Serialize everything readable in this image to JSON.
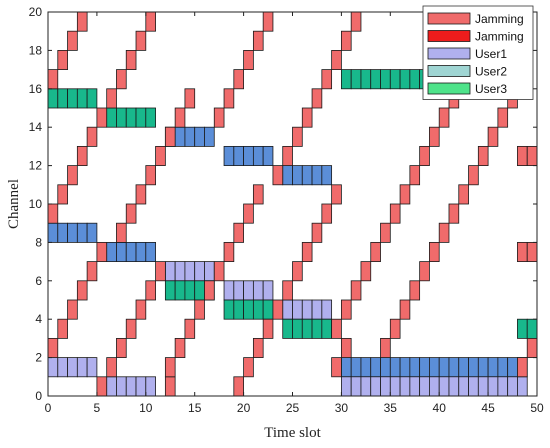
{
  "chart_data": {
    "type": "heatmap",
    "xlabel": "Time slot",
    "ylabel": "Channel",
    "xlim": [
      0,
      50
    ],
    "ylim": [
      0,
      20
    ],
    "xticks": [
      0,
      5,
      10,
      15,
      20,
      25,
      30,
      35,
      40,
      45,
      50
    ],
    "yticks": [
      0,
      2,
      4,
      6,
      8,
      10,
      12,
      14,
      16,
      18,
      20
    ],
    "grid": false,
    "legend_position": "top-right",
    "legend": [
      {
        "label": "Jamming",
        "color": "#f06b6b"
      },
      {
        "label": "Jamming",
        "color": "#ee1c1c"
      },
      {
        "label": "User1",
        "color": "#b0b0ee"
      },
      {
        "label": "User2",
        "color": "#9fd5d3"
      },
      {
        "label": "User3",
        "color": "#4ee38a"
      }
    ],
    "series": [
      {
        "color": "#5b8ed8",
        "cells": [
          [
            0,
            8
          ],
          [
            1,
            8
          ],
          [
            2,
            8
          ],
          [
            3,
            8
          ],
          [
            4,
            8
          ],
          [
            6,
            7
          ],
          [
            7,
            7
          ],
          [
            8,
            7
          ],
          [
            9,
            7
          ],
          [
            10,
            7
          ],
          [
            12,
            13
          ],
          [
            13,
            13
          ],
          [
            14,
            13
          ],
          [
            15,
            13
          ],
          [
            16,
            13
          ],
          [
            18,
            12
          ],
          [
            19,
            12
          ],
          [
            20,
            12
          ],
          [
            21,
            12
          ],
          [
            22,
            12
          ],
          [
            24,
            11
          ],
          [
            25,
            11
          ],
          [
            26,
            11
          ],
          [
            27,
            11
          ],
          [
            28,
            11
          ],
          [
            30,
            1
          ],
          [
            31,
            1
          ],
          [
            32,
            1
          ],
          [
            33,
            1
          ],
          [
            34,
            1
          ],
          [
            35,
            1
          ],
          [
            36,
            1
          ],
          [
            37,
            1
          ],
          [
            38,
            1
          ],
          [
            39,
            1
          ],
          [
            40,
            1
          ],
          [
            41,
            1
          ],
          [
            42,
            1
          ],
          [
            43,
            1
          ],
          [
            44,
            1
          ],
          [
            45,
            1
          ],
          [
            46,
            1
          ],
          [
            47,
            1
          ],
          [
            48,
            1
          ]
        ]
      },
      {
        "color": "#b0b0ee",
        "cells": [
          [
            0,
            1
          ],
          [
            1,
            1
          ],
          [
            2,
            1
          ],
          [
            3,
            1
          ],
          [
            4,
            1
          ],
          [
            6,
            0
          ],
          [
            7,
            0
          ],
          [
            8,
            0
          ],
          [
            9,
            0
          ],
          [
            10,
            0
          ],
          [
            12,
            6
          ],
          [
            13,
            6
          ],
          [
            14,
            6
          ],
          [
            15,
            6
          ],
          [
            16,
            6
          ],
          [
            18,
            5
          ],
          [
            19,
            5
          ],
          [
            20,
            5
          ],
          [
            21,
            5
          ],
          [
            22,
            5
          ],
          [
            24,
            4
          ],
          [
            25,
            4
          ],
          [
            26,
            4
          ],
          [
            27,
            4
          ],
          [
            28,
            4
          ],
          [
            30,
            0
          ],
          [
            31,
            0
          ],
          [
            32,
            0
          ],
          [
            33,
            0
          ],
          [
            34,
            0
          ],
          [
            35,
            0
          ],
          [
            36,
            0
          ],
          [
            37,
            0
          ],
          [
            38,
            0
          ],
          [
            39,
            0
          ],
          [
            40,
            0
          ],
          [
            41,
            0
          ],
          [
            42,
            0
          ],
          [
            43,
            0
          ],
          [
            44,
            0
          ],
          [
            45,
            0
          ],
          [
            46,
            0
          ],
          [
            47,
            0
          ],
          [
            48,
            0
          ]
        ]
      },
      {
        "color": "#18b88c",
        "cells": [
          [
            0,
            15
          ],
          [
            1,
            15
          ],
          [
            2,
            15
          ],
          [
            3,
            15
          ],
          [
            4,
            15
          ],
          [
            6,
            14
          ],
          [
            7,
            14
          ],
          [
            8,
            14
          ],
          [
            9,
            14
          ],
          [
            10,
            14
          ],
          [
            12,
            5
          ],
          [
            13,
            5
          ],
          [
            14,
            5
          ],
          [
            15,
            5
          ],
          [
            16,
            5
          ],
          [
            18,
            4
          ],
          [
            19,
            4
          ],
          [
            20,
            4
          ],
          [
            21,
            4
          ],
          [
            22,
            4
          ],
          [
            24,
            3
          ],
          [
            25,
            3
          ],
          [
            26,
            3
          ],
          [
            27,
            3
          ],
          [
            28,
            3
          ],
          [
            30,
            16
          ],
          [
            31,
            16
          ],
          [
            32,
            16
          ],
          [
            33,
            16
          ],
          [
            34,
            16
          ],
          [
            35,
            16
          ],
          [
            36,
            16
          ],
          [
            37,
            16
          ],
          [
            38,
            16
          ],
          [
            48,
            3
          ],
          [
            49,
            3
          ]
        ]
      },
      {
        "color": "#f06b6b",
        "cells": [
          [
            0,
            16
          ],
          [
            1,
            17
          ],
          [
            2,
            18
          ],
          [
            3,
            19
          ],
          [
            0,
            9
          ],
          [
            1,
            10
          ],
          [
            2,
            11
          ],
          [
            3,
            12
          ],
          [
            4,
            13
          ],
          [
            5,
            14
          ],
          [
            6,
            15
          ],
          [
            0,
            2
          ],
          [
            1,
            3
          ],
          [
            2,
            4
          ],
          [
            3,
            5
          ],
          [
            4,
            6
          ],
          [
            5,
            7
          ],
          [
            5,
            0
          ],
          [
            6,
            1
          ],
          [
            7,
            2
          ],
          [
            8,
            3
          ],
          [
            9,
            4
          ],
          [
            10,
            5
          ],
          [
            11,
            6
          ],
          [
            7,
            16
          ],
          [
            8,
            17
          ],
          [
            9,
            18
          ],
          [
            10,
            19
          ],
          [
            7,
            8
          ],
          [
            8,
            9
          ],
          [
            9,
            10
          ],
          [
            10,
            11
          ],
          [
            11,
            12
          ],
          [
            12,
            13
          ],
          [
            13,
            14
          ],
          [
            14,
            15
          ],
          [
            12,
            0
          ],
          [
            12,
            1
          ],
          [
            13,
            2
          ],
          [
            14,
            3
          ],
          [
            15,
            4
          ],
          [
            16,
            5
          ],
          [
            17,
            6
          ],
          [
            18,
            7
          ],
          [
            19,
            8
          ],
          [
            20,
            9
          ],
          [
            21,
            10
          ],
          [
            17,
            14
          ],
          [
            18,
            15
          ],
          [
            19,
            16
          ],
          [
            20,
            17
          ],
          [
            21,
            18
          ],
          [
            22,
            19
          ],
          [
            19,
            0
          ],
          [
            20,
            1
          ],
          [
            21,
            2
          ],
          [
            22,
            3
          ],
          [
            23,
            4
          ],
          [
            24,
            5
          ],
          [
            25,
            6
          ],
          [
            26,
            7
          ],
          [
            27,
            8
          ],
          [
            28,
            9
          ],
          [
            29,
            10
          ],
          [
            23,
            11
          ],
          [
            24,
            12
          ],
          [
            25,
            13
          ],
          [
            26,
            14
          ],
          [
            27,
            15
          ],
          [
            28,
            16
          ],
          [
            29,
            17
          ],
          [
            30,
            18
          ],
          [
            31,
            19
          ],
          [
            29,
            3
          ],
          [
            30,
            4
          ],
          [
            31,
            5
          ],
          [
            32,
            6
          ],
          [
            33,
            7
          ],
          [
            34,
            8
          ],
          [
            35,
            9
          ],
          [
            36,
            10
          ],
          [
            37,
            11
          ],
          [
            38,
            12
          ],
          [
            39,
            13
          ],
          [
            40,
            14
          ],
          [
            41,
            15
          ],
          [
            42,
            16
          ],
          [
            43,
            17
          ],
          [
            44,
            18
          ],
          [
            34,
            2
          ],
          [
            35,
            3
          ],
          [
            36,
            4
          ],
          [
            37,
            5
          ],
          [
            38,
            6
          ],
          [
            39,
            7
          ],
          [
            40,
            8
          ],
          [
            41,
            9
          ],
          [
            42,
            10
          ],
          [
            43,
            11
          ],
          [
            44,
            12
          ],
          [
            45,
            13
          ],
          [
            46,
            14
          ],
          [
            47,
            15
          ],
          [
            29,
            1
          ],
          [
            30,
            2
          ],
          [
            48,
            1
          ],
          [
            49,
            2
          ],
          [
            48,
            7
          ],
          [
            49,
            7
          ],
          [
            48,
            12
          ],
          [
            49,
            12
          ]
        ]
      }
    ]
  }
}
